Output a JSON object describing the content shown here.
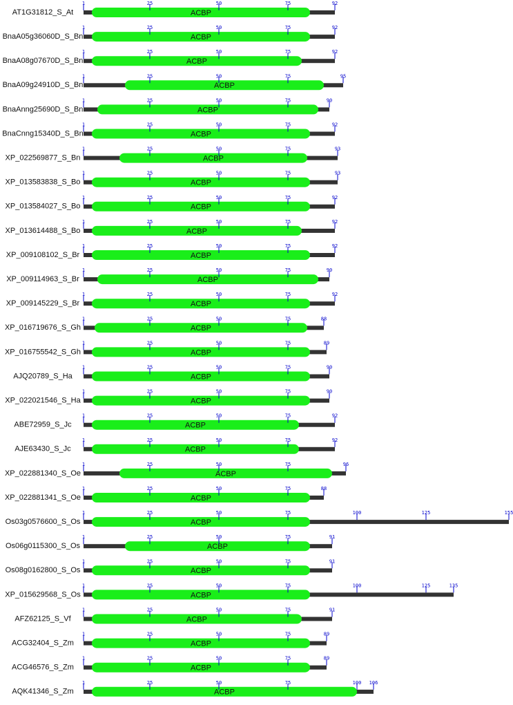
{
  "rows": [
    {
      "label": "AT1G31812_S_At",
      "length": 92,
      "ticks": [
        1,
        25,
        50,
        75
      ],
      "domain": {
        "name": "ACBP",
        "start": 4,
        "end": 83
      }
    },
    {
      "label": "BnaA05g36060D_S_Bn",
      "length": 92,
      "ticks": [
        1,
        25,
        50,
        75
      ],
      "domain": {
        "name": "ACBP",
        "start": 4,
        "end": 83
      }
    },
    {
      "label": "BnaA08g07670D_S_Bn",
      "length": 92,
      "ticks": [
        1,
        25,
        50,
        75
      ],
      "domain": {
        "name": "ACBP",
        "start": 4,
        "end": 80
      }
    },
    {
      "label": "BnaA09g24910D_S_Bn",
      "length": 95,
      "ticks": [
        1,
        25,
        50,
        75
      ],
      "domain": {
        "name": "ACBP",
        "start": 16,
        "end": 88
      }
    },
    {
      "label": "BnaAnng25690D_S_Bn",
      "length": 90,
      "ticks": [
        1,
        25,
        50,
        75
      ],
      "domain": {
        "name": "ACBP",
        "start": 6,
        "end": 86
      }
    },
    {
      "label": "BnaCnng15340D_S_Bn",
      "length": 92,
      "ticks": [
        1,
        25,
        50,
        75
      ],
      "domain": {
        "name": "ACBP",
        "start": 4,
        "end": 83
      }
    },
    {
      "label": "XP_022569877_S_Bn",
      "length": 93,
      "ticks": [
        1,
        25,
        50,
        75
      ],
      "domain": {
        "name": "ACBP",
        "start": 14,
        "end": 82
      }
    },
    {
      "label": "XP_013583838_S_Bo",
      "length": 93,
      "ticks": [
        1,
        25,
        50,
        75
      ],
      "domain": {
        "name": "ACBP",
        "start": 4,
        "end": 83
      }
    },
    {
      "label": "XP_013584027_S_Bo",
      "length": 92,
      "ticks": [
        1,
        25,
        50,
        75
      ],
      "domain": {
        "name": "ACBP",
        "start": 4,
        "end": 83
      }
    },
    {
      "label": "XP_013614488_S_Bo",
      "length": 92,
      "ticks": [
        1,
        25,
        50,
        75
      ],
      "domain": {
        "name": "ACBP",
        "start": 4,
        "end": 80
      }
    },
    {
      "label": "XP_009108102_S_Br",
      "length": 92,
      "ticks": [
        1,
        25,
        50,
        75
      ],
      "domain": {
        "name": "ACBP",
        "start": 4,
        "end": 83
      }
    },
    {
      "label": "XP_009114963_S_Br",
      "length": 90,
      "ticks": [
        1,
        25,
        50,
        75
      ],
      "domain": {
        "name": "ACBP",
        "start": 6,
        "end": 86
      }
    },
    {
      "label": "XP_009145229_S_Br",
      "length": 92,
      "ticks": [
        1,
        25,
        50,
        75
      ],
      "domain": {
        "name": "ACBP",
        "start": 4,
        "end": 83
      }
    },
    {
      "label": "XP_016719676_S_Gh",
      "length": 88,
      "ticks": [
        1,
        25,
        50,
        75
      ],
      "domain": {
        "name": "ACBP",
        "start": 5,
        "end": 82
      }
    },
    {
      "label": "XP_016755542_S_Gh",
      "length": 89,
      "ticks": [
        1,
        25,
        50,
        75
      ],
      "domain": {
        "name": "ACBP",
        "start": 4,
        "end": 83
      }
    },
    {
      "label": "AJQ20789_S_Ha",
      "length": 90,
      "ticks": [
        1,
        25,
        50,
        75
      ],
      "domain": {
        "name": "ACBP",
        "start": 4,
        "end": 83
      }
    },
    {
      "label": "XP_022021546_S_Ha",
      "length": 90,
      "ticks": [
        1,
        25,
        50,
        75
      ],
      "domain": {
        "name": "ACBP",
        "start": 4,
        "end": 83
      }
    },
    {
      "label": "ABE72959_S_Jc",
      "length": 92,
      "ticks": [
        1,
        25,
        50,
        75
      ],
      "domain": {
        "name": "ACBP",
        "start": 4,
        "end": 79
      }
    },
    {
      "label": "AJE63430_S_Jc",
      "length": 92,
      "ticks": [
        1,
        25,
        50,
        75
      ],
      "domain": {
        "name": "ACBP",
        "start": 4,
        "end": 79
      }
    },
    {
      "label": "XP_022881340_S_Oe",
      "length": 96,
      "ticks": [
        1,
        25,
        50,
        75
      ],
      "domain": {
        "name": "ACBP",
        "start": 14,
        "end": 91
      }
    },
    {
      "label": "XP_022881341_S_Oe",
      "length": 88,
      "ticks": [
        1,
        25,
        50,
        75
      ],
      "domain": {
        "name": "ACBP",
        "start": 4,
        "end": 83
      }
    },
    {
      "label": "Os03g0576600_S_Os",
      "length": 155,
      "ticks": [
        1,
        25,
        50,
        75,
        100,
        125
      ],
      "domain": {
        "name": "ACBP",
        "start": 4,
        "end": 83
      }
    },
    {
      "label": "Os06g0115300_S_Os",
      "length": 91,
      "ticks": [
        1,
        25,
        50,
        75
      ],
      "domain": {
        "name": "ACBP",
        "start": 16,
        "end": 83
      }
    },
    {
      "label": "Os08g0162800_S_Os",
      "length": 91,
      "ticks": [
        1,
        25,
        50,
        75
      ],
      "domain": {
        "name": "ACBP",
        "start": 4,
        "end": 83
      }
    },
    {
      "label": "XP_015629568_S_Os",
      "length": 135,
      "ticks": [
        1,
        25,
        50,
        75,
        100,
        125
      ],
      "domain": {
        "name": "ACBP",
        "start": 4,
        "end": 83
      }
    },
    {
      "label": "AFZ62125_S_Vf",
      "length": 91,
      "ticks": [
        1,
        25,
        50,
        75
      ],
      "domain": {
        "name": "ACBP",
        "start": 4,
        "end": 80
      }
    },
    {
      "label": "ACG32404_S_Zm",
      "length": 89,
      "ticks": [
        1,
        25,
        50,
        75
      ],
      "domain": {
        "name": "ACBP",
        "start": 4,
        "end": 83
      }
    },
    {
      "label": "ACG46576_S_Zm",
      "length": 89,
      "ticks": [
        1,
        25,
        50,
        75
      ],
      "domain": {
        "name": "ACBP",
        "start": 4,
        "end": 83
      }
    },
    {
      "label": "AQK41346_S_Zm",
      "length": 106,
      "ticks": [
        1,
        25,
        50,
        75,
        100
      ],
      "domain": {
        "name": "ACBP",
        "start": 4,
        "end": 100
      }
    }
  ]
}
